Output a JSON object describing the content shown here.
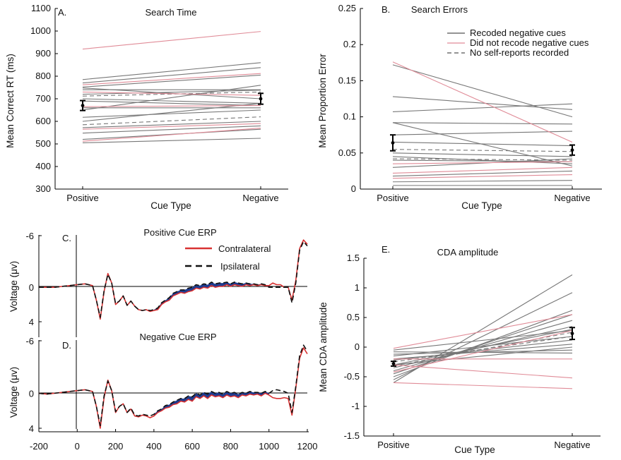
{
  "colors": {
    "recoded": "#777777",
    "not_recoded": "#e08b97",
    "contra": "#d83232",
    "ipsi": "#111111",
    "diff": "#1f3c8f",
    "errbar": "#000000"
  },
  "chart_data": [
    {
      "id": "A",
      "panel_label": "A.",
      "type": "line",
      "title": "Search Time",
      "xlabel": "Cue Type",
      "ylabel": "Mean Correct RT (ms)",
      "categories": [
        "Positive",
        "Negative"
      ],
      "ylim": [
        300,
        1100
      ],
      "yticks": [
        300,
        400,
        500,
        600,
        700,
        800,
        900,
        1000,
        1100
      ],
      "series": [
        {
          "group": "not_recoded",
          "values": [
            920,
            998
          ]
        },
        {
          "group": "recoded",
          "values": [
            785,
            860
          ]
        },
        {
          "group": "recoded",
          "values": [
            770,
            838
          ]
        },
        {
          "group": "not_recoded",
          "values": [
            762,
            812
          ]
        },
        {
          "group": "recoded",
          "values": [
            752,
            805
          ]
        },
        {
          "group": "recoded",
          "values": [
            748,
            700
          ]
        },
        {
          "group": "recoded",
          "values": [
            740,
            740
          ]
        },
        {
          "group": "not_recoded",
          "values": [
            730,
            715
          ]
        },
        {
          "group": "recoded",
          "values": [
            720,
            738
          ]
        },
        {
          "group": "no_report",
          "values": [
            712,
            730
          ]
        },
        {
          "group": "recoded",
          "values": [
            700,
            680
          ]
        },
        {
          "group": "recoded",
          "values": [
            690,
            670
          ]
        },
        {
          "group": "not_recoded",
          "values": [
            665,
            670
          ]
        },
        {
          "group": "recoded",
          "values": [
            660,
            660
          ]
        },
        {
          "group": "recoded",
          "values": [
            650,
            760
          ]
        },
        {
          "group": "recoded",
          "values": [
            618,
            650
          ]
        },
        {
          "group": "recoded",
          "values": [
            600,
            680
          ]
        },
        {
          "group": "no_report",
          "values": [
            585,
            620
          ]
        },
        {
          "group": "recoded",
          "values": [
            572,
            600
          ]
        },
        {
          "group": "not_recoded",
          "values": [
            565,
            590
          ]
        },
        {
          "group": "recoded",
          "values": [
            548,
            580
          ]
        },
        {
          "group": "recoded",
          "values": [
            520,
            565
          ]
        },
        {
          "group": "not_recoded",
          "values": [
            512,
            570
          ]
        },
        {
          "group": "recoded",
          "values": [
            505,
            525
          ]
        }
      ],
      "means": [
        670,
        700
      ],
      "errors": [
        22,
        24
      ]
    },
    {
      "id": "B",
      "panel_label": "B.",
      "type": "line",
      "title": "Search Errors",
      "xlabel": "Cue Type",
      "ylabel": "Mean Proportion Error",
      "categories": [
        "Positive",
        "Negative"
      ],
      "ylim": [
        0,
        0.25
      ],
      "yticks": [
        0,
        0.05,
        0.1,
        0.15,
        0.2,
        0.25
      ],
      "ytick_labels": [
        "0",
        "0.05",
        "0.1",
        "0.15",
        "0.2",
        "0.25"
      ],
      "legend": [
        {
          "label": "Recoded negative cues",
          "group": "recoded"
        },
        {
          "label": "Did not recode negative cues",
          "group": "not_recoded"
        },
        {
          "label": "No self-reports recorded",
          "group": "no_report"
        }
      ],
      "series": [
        {
          "group": "not_recoded",
          "values": [
            0.176,
            0.065
          ]
        },
        {
          "group": "recoded",
          "values": [
            0.172,
            0.1
          ]
        },
        {
          "group": "recoded",
          "values": [
            0.128,
            0.11
          ]
        },
        {
          "group": "recoded",
          "values": [
            0.107,
            0.118
          ]
        },
        {
          "group": "recoded",
          "values": [
            0.092,
            0.09
          ]
        },
        {
          "group": "recoded",
          "values": [
            0.092,
            0.032
          ]
        },
        {
          "group": "recoded",
          "values": [
            0.075,
            0.08
          ]
        },
        {
          "group": "recoded",
          "values": [
            0.065,
            0.06
          ]
        },
        {
          "group": "no_report",
          "values": [
            0.055,
            0.052
          ]
        },
        {
          "group": "recoded",
          "values": [
            0.05,
            0.045
          ]
        },
        {
          "group": "recoded",
          "values": [
            0.045,
            0.035
          ]
        },
        {
          "group": "no_report",
          "values": [
            0.042,
            0.04
          ]
        },
        {
          "group": "recoded",
          "values": [
            0.04,
            0.038
          ]
        },
        {
          "group": "not_recoded",
          "values": [
            0.035,
            0.038
          ]
        },
        {
          "group": "recoded",
          "values": [
            0.03,
            0.042
          ]
        },
        {
          "group": "not_recoded",
          "values": [
            0.022,
            0.03
          ]
        },
        {
          "group": "recoded",
          "values": [
            0.018,
            0.025
          ]
        },
        {
          "group": "not_recoded",
          "values": [
            0.015,
            0.02
          ]
        },
        {
          "group": "recoded",
          "values": [
            0.01,
            0.012
          ]
        },
        {
          "group": "recoded",
          "values": [
            0.005,
            0.005
          ]
        }
      ],
      "means": [
        0.064,
        0.054
      ],
      "errors": [
        0.011,
        0.007
      ]
    },
    {
      "id": "C",
      "panel_label": "C.",
      "type": "line",
      "title": "Positive Cue ERP",
      "ylabel": "Voltage (μv)",
      "ylim": [
        -6,
        4
      ],
      "yticks": [
        -6,
        0,
        4
      ],
      "ytick_labels": [
        "-6",
        "0",
        "4"
      ],
      "xlim": [
        -200,
        1200
      ],
      "legend": [
        {
          "label": "Contralateral",
          "key": "contra"
        },
        {
          "label": "Ipsilateral",
          "key": "ipsi"
        }
      ],
      "x": [
        -200,
        -160,
        -120,
        -80,
        -40,
        0,
        40,
        80,
        100,
        120,
        140,
        160,
        180,
        200,
        220,
        240,
        260,
        280,
        300,
        320,
        340,
        360,
        380,
        400,
        420,
        440,
        460,
        480,
        500,
        520,
        540,
        560,
        580,
        600,
        620,
        640,
        660,
        680,
        700,
        720,
        740,
        760,
        780,
        800,
        820,
        840,
        860,
        880,
        900,
        920,
        940,
        960,
        980,
        1000,
        1020,
        1040,
        1060,
        1080,
        1100,
        1120,
        1140,
        1160,
        1180,
        1200
      ],
      "series": [
        {
          "key": "contra",
          "name": "Contralateral",
          "values": [
            0,
            0,
            0,
            -0.1,
            -0.2,
            -0.3,
            -0.4,
            -0.2,
            1.5,
            3.7,
            0.5,
            -1.6,
            -0.5,
            2.0,
            1.6,
            1.0,
            2.1,
            1.6,
            2.2,
            2.6,
            2.7,
            2.6,
            2.8,
            2.7,
            2.6,
            2.0,
            1.7,
            1.5,
            1.0,
            0.8,
            0.6,
            0.7,
            0.5,
            0.4,
            0.1,
            0.2,
            0.0,
            0.1,
            -0.2,
            0.0,
            -0.1,
            -0.1,
            -0.3,
            -0.1,
            -0.3,
            -0.2,
            -0.1,
            -0.3,
            -0.2,
            -0.3,
            -0.2,
            -0.3,
            -0.2,
            -0.2,
            -0.5,
            -0.3,
            -0.3,
            0.0,
            0.0,
            1.5,
            -0.8,
            -4.5,
            -5.5,
            -5.0
          ]
        },
        {
          "key": "ipsi",
          "name": "Ipsilateral",
          "values": [
            0,
            0,
            0,
            -0.1,
            -0.2,
            -0.3,
            -0.4,
            -0.2,
            1.5,
            3.5,
            0.4,
            -1.5,
            -0.5,
            1.9,
            1.6,
            1.0,
            2.1,
            1.6,
            2.2,
            2.6,
            2.7,
            2.6,
            2.7,
            2.6,
            2.4,
            1.8,
            1.5,
            1.2,
            0.7,
            0.5,
            0.3,
            0.3,
            0.1,
            0.0,
            -0.3,
            -0.2,
            -0.4,
            -0.3,
            -0.6,
            -0.4,
            -0.5,
            -0.5,
            -0.6,
            -0.4,
            -0.6,
            -0.5,
            -0.4,
            -0.5,
            -0.4,
            -0.4,
            -0.3,
            -0.4,
            -0.3,
            0.0,
            0.0,
            0.0,
            0.0,
            0.0,
            0.0,
            1.8,
            -0.5,
            -4.3,
            -5.3,
            -4.8
          ]
        }
      ]
    },
    {
      "id": "D",
      "panel_label": "D.",
      "type": "line",
      "title": "Negative Cue ERP",
      "ylabel": "Voltage (μv)",
      "ylim": [
        -6,
        4
      ],
      "yticks": [
        -6,
        0,
        4
      ],
      "ytick_labels": [
        "-6",
        "0",
        "4"
      ],
      "xlim": [
        -200,
        1200
      ],
      "xticks": [
        -200,
        0,
        200,
        400,
        600,
        800,
        1000,
        1200
      ],
      "xtick_labels": [
        "-200",
        "0",
        "200",
        "400",
        "600",
        "800",
        "1000",
        "1200"
      ],
      "x": [
        -200,
        -160,
        -120,
        -80,
        -40,
        0,
        40,
        80,
        100,
        120,
        140,
        160,
        180,
        200,
        220,
        240,
        260,
        280,
        300,
        320,
        340,
        360,
        380,
        400,
        420,
        440,
        460,
        480,
        500,
        520,
        540,
        560,
        580,
        600,
        620,
        640,
        660,
        680,
        700,
        720,
        740,
        760,
        780,
        800,
        820,
        840,
        860,
        880,
        900,
        920,
        940,
        960,
        980,
        1000,
        1020,
        1040,
        1060,
        1080,
        1100,
        1120,
        1140,
        1160,
        1180,
        1200
      ],
      "series": [
        {
          "key": "contra",
          "name": "Contralateral",
          "values": [
            0,
            0.1,
            0,
            -0.1,
            -0.2,
            -0.3,
            -0.4,
            -0.2,
            1.5,
            4.0,
            0.5,
            -1.5,
            -0.3,
            2.2,
            1.5,
            1.2,
            2.2,
            1.8,
            2.6,
            2.7,
            2.5,
            2.6,
            2.8,
            2.6,
            2.2,
            2.0,
            1.7,
            1.6,
            1.3,
            1.2,
            0.9,
            1.0,
            0.7,
            0.9,
            0.4,
            0.6,
            0.3,
            0.6,
            0.2,
            0.4,
            0.3,
            0.5,
            0.2,
            0.4,
            0.3,
            0.5,
            0.2,
            0.3,
            0.1,
            0.2,
            0.1,
            0.3,
            0.0,
            0.2,
            0.5,
            0.6,
            0.6,
            0.5,
            0.6,
            2.5,
            -0.6,
            -4.0,
            -5.2,
            -4.5
          ]
        },
        {
          "key": "ipsi",
          "name": "Ipsilateral",
          "values": [
            0,
            0.1,
            0,
            -0.1,
            -0.2,
            -0.3,
            -0.4,
            -0.2,
            1.5,
            3.7,
            0.3,
            -1.4,
            -0.3,
            2.1,
            1.5,
            1.2,
            2.2,
            1.7,
            2.5,
            2.6,
            2.4,
            2.5,
            2.6,
            2.4,
            2.0,
            1.8,
            1.4,
            1.3,
            1.0,
            0.8,
            0.6,
            0.6,
            0.3,
            0.4,
            0.0,
            0.2,
            -0.1,
            0.1,
            -0.2,
            0.0,
            -0.1,
            0.1,
            -0.2,
            0.0,
            -0.1,
            0.1,
            -0.1,
            0.0,
            -0.2,
            -0.1,
            -0.1,
            0.0,
            -0.2,
            0.0,
            -0.3,
            -0.4,
            -0.3,
            -0.2,
            0.0,
            2.2,
            -0.8,
            -4.3,
            -5.5,
            -4.8
          ]
        }
      ]
    },
    {
      "id": "E",
      "panel_label": "E.",
      "type": "line",
      "title": "CDA amplitude",
      "xlabel": "Cue Type",
      "ylabel": "Mean CDA amplitude",
      "categories": [
        "Positive",
        "Negative"
      ],
      "ylim": [
        -1.5,
        1.5
      ],
      "yticks": [
        -1.5,
        -1,
        -0.5,
        0,
        0.5,
        1,
        1.5
      ],
      "ytick_labels": [
        "-1.5",
        "-1",
        "-0.5",
        "0",
        "0.5",
        "1",
        "1.5"
      ],
      "series": [
        {
          "group": "recoded",
          "values": [
            -0.6,
            1.22
          ]
        },
        {
          "group": "recoded",
          "values": [
            -0.55,
            0.92
          ]
        },
        {
          "group": "recoded",
          "values": [
            -0.5,
            0.62
          ]
        },
        {
          "group": "recoded",
          "values": [
            -0.45,
            0.55
          ]
        },
        {
          "group": "not_recoded",
          "values": [
            -0.42,
            0.28
          ]
        },
        {
          "group": "recoded",
          "values": [
            -0.4,
            0.45
          ]
        },
        {
          "group": "recoded",
          "values": [
            -0.35,
            0.35
          ]
        },
        {
          "group": "no_report",
          "values": [
            -0.32,
            0.25
          ]
        },
        {
          "group": "recoded",
          "values": [
            -0.3,
            0.3
          ]
        },
        {
          "group": "no_report",
          "values": [
            -0.25,
            0.18
          ]
        },
        {
          "group": "recoded",
          "values": [
            -0.22,
            0.12
          ]
        },
        {
          "group": "recoded",
          "values": [
            -0.2,
            0.05
          ]
        },
        {
          "group": "recoded",
          "values": [
            -0.15,
            0.18
          ]
        },
        {
          "group": "recoded",
          "values": [
            -0.12,
            -0.05
          ]
        },
        {
          "group": "recoded",
          "values": [
            -0.08,
            -0.1
          ]
        },
        {
          "group": "recoded",
          "values": [
            -0.05,
            0.28
          ]
        },
        {
          "group": "not_recoded",
          "values": [
            -0.02,
            0.55
          ]
        },
        {
          "group": "not_recoded",
          "values": [
            -0.2,
            -0.2
          ]
        },
        {
          "group": "not_recoded",
          "values": [
            -0.3,
            -0.52
          ]
        },
        {
          "group": "not_recoded",
          "values": [
            -0.6,
            -0.7
          ]
        },
        {
          "group": "recoded",
          "values": [
            -0.3,
            0.0
          ]
        }
      ],
      "means": [
        -0.28,
        0.23
      ],
      "errors": [
        0.04,
        0.1
      ]
    }
  ]
}
